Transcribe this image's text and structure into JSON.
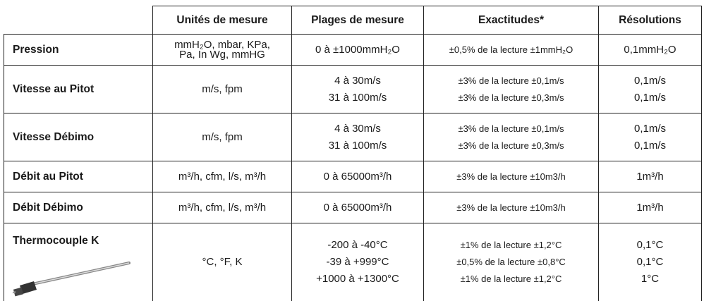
{
  "table": {
    "header": [
      "Unités de mesure",
      "Plages de mesure",
      "Exactitudes*",
      "Résolutions"
    ],
    "rows": [
      {
        "label": "Pression",
        "units": [
          "mmH₂O, mbar, KPa,",
          "Pa, In Wg, mmHG"
        ],
        "ranges": [
          "0 à ±1000mmH₂O"
        ],
        "accuracies": [
          "±0,5% de la lecture ±1mmH₂O"
        ],
        "resolutions": [
          "0,1mmH₂O"
        ]
      },
      {
        "label": "Vitesse au Pitot",
        "units": [
          "m/s, fpm"
        ],
        "ranges": [
          "4 à 30m/s",
          "31 à 100m/s"
        ],
        "accuracies": [
          "±3% de la lecture ±0,1m/s",
          "±3% de la lecture ±0,3m/s"
        ],
        "resolutions": [
          "0,1m/s",
          "0,1m/s"
        ]
      },
      {
        "label": "Vitesse Débimo",
        "units": [
          "m/s, fpm"
        ],
        "ranges": [
          "4 à 30m/s",
          "31 à 100m/s"
        ],
        "accuracies": [
          "±3% de la lecture ±0,1m/s",
          "±3% de la lecture ±0,3m/s"
        ],
        "resolutions": [
          "0,1m/s",
          "0,1m/s"
        ]
      },
      {
        "label": "Débit au Pitot",
        "units": [
          "m³/h, cfm, l/s, m³/h"
        ],
        "ranges": [
          "0 à 65000m³/h"
        ],
        "accuracies": [
          "±3% de la lecture ±10m3/h"
        ],
        "resolutions": [
          "1m³/h"
        ]
      },
      {
        "label": "Débit Débimo",
        "units": [
          "m³/h, cfm, l/s, m³/h"
        ],
        "ranges": [
          "0 à 65000m³/h"
        ],
        "accuracies": [
          "±3% de la lecture ±10m3/h"
        ],
        "resolutions": [
          "1m³/h"
        ]
      },
      {
        "label": "Thermocouple K",
        "units": [
          "°C, °F, K"
        ],
        "ranges": [
          "-200 à -40°C",
          "-39 à +999°C",
          "+1000 à +1300°C"
        ],
        "accuracies": [
          "±1% de la lecture ±1,2°C",
          "±0,5% de la lecture ±0,8°C",
          "±1% de la lecture ±1,2°C"
        ],
        "resolutions": [
          "0,1°C",
          "0,1°C",
          "1°C"
        ]
      }
    ]
  }
}
